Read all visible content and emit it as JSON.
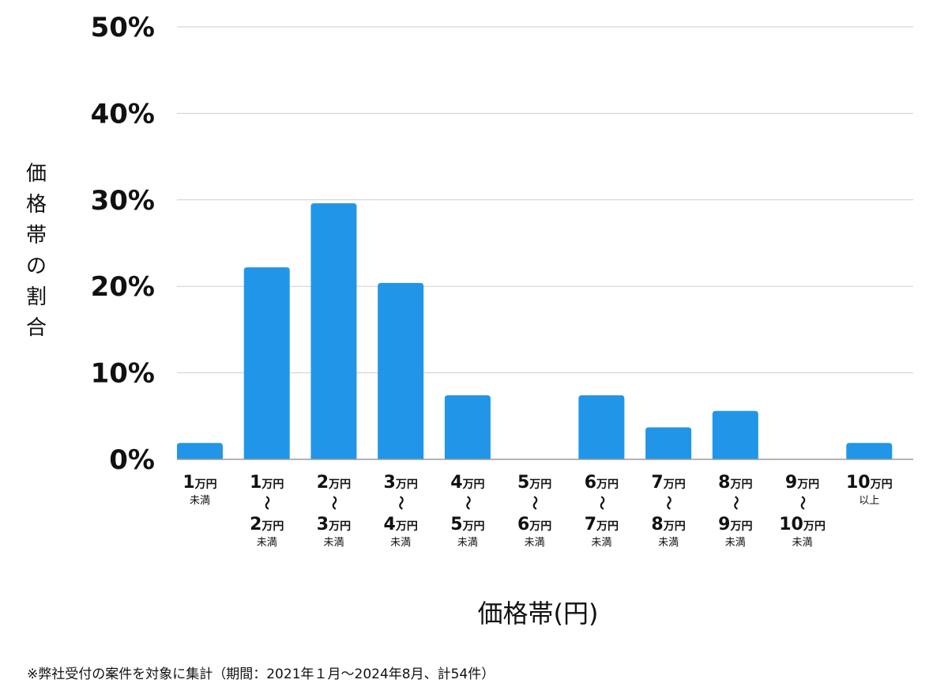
{
  "chart_data": {
    "type": "bar",
    "ylabel": "価格帯の割合",
    "xlabel": "価格帯(円)",
    "ylim": [
      0,
      50
    ],
    "yticks": [
      0,
      10,
      20,
      30,
      40,
      50
    ],
    "ytick_labels": [
      "0%",
      "10%",
      "20%",
      "30%",
      "40%",
      "50%"
    ],
    "grid": true,
    "bar_color": "#2196E8",
    "categories": [
      "1万円未満",
      "1万円〜2万円未満",
      "2万円〜3万円未満",
      "3万円〜4万円未満",
      "4万円〜5万円未満",
      "5万円〜6万円未満",
      "6万円〜7万円未満",
      "7万円〜8万円未満",
      "8万円〜9万円未満",
      "9万円〜10万円未満",
      "10万円以上"
    ],
    "category_labels": [
      {
        "from": "1",
        "to": "",
        "suffix": "未満"
      },
      {
        "from": "1",
        "to": "2",
        "suffix": "未満"
      },
      {
        "from": "2",
        "to": "3",
        "suffix": "未満"
      },
      {
        "from": "3",
        "to": "4",
        "suffix": "未満"
      },
      {
        "from": "4",
        "to": "5",
        "suffix": "未満"
      },
      {
        "from": "5",
        "to": "6",
        "suffix": "未満"
      },
      {
        "from": "6",
        "to": "7",
        "suffix": "未満"
      },
      {
        "from": "7",
        "to": "8",
        "suffix": "未満"
      },
      {
        "from": "8",
        "to": "9",
        "suffix": "未満"
      },
      {
        "from": "9",
        "to": "10",
        "suffix": "未満"
      },
      {
        "from": "10",
        "to": "",
        "suffix": "以上"
      }
    ],
    "unit_text": "万円",
    "range_separator": "〜",
    "values": [
      1.9,
      22.2,
      29.6,
      20.4,
      7.4,
      0,
      7.4,
      3.7,
      5.6,
      0,
      1.9
    ]
  },
  "footnote": "※弊社受付の案件を対象に集計（期間：2021年１月〜2024年8月、計54件）"
}
